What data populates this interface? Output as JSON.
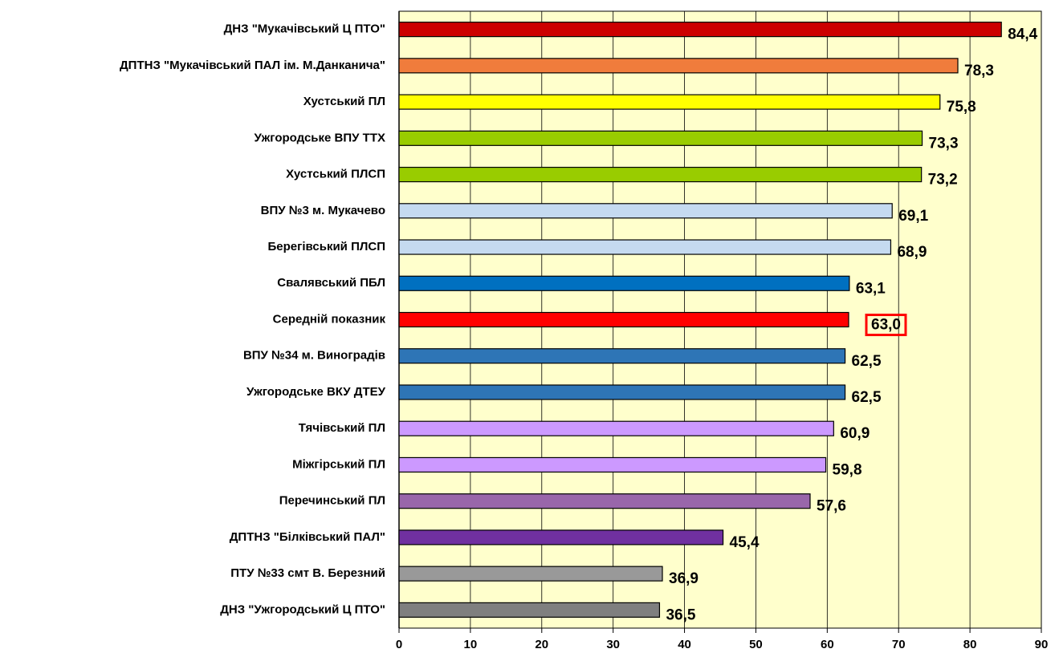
{
  "chart_data": {
    "type": "bar",
    "orientation": "horizontal",
    "categories": [
      "ДНЗ \"Мукачівський Ц ПТО\"",
      "ДПТНЗ \"Мукачівський ПАЛ ім. М.Данканича\"",
      "Хустський ПЛ",
      "Ужгородське ВПУ ТТХ",
      "Хустський ПЛСП",
      "ВПУ №3 м. Мукачево",
      "Берегівський ПЛСП",
      "Свалявський ПБЛ",
      "Середній показник",
      "ВПУ №34 м. Виноградів",
      "Ужгородське ВКУ ДТЕУ",
      "Тячівський ПЛ",
      "Міжгірський ПЛ",
      "Перечинський ПЛ",
      "ДПТНЗ \"Білківський ПАЛ\"",
      "ПТУ №33 смт В. Березний",
      "ДНЗ \"Ужгородський Ц ПТО\""
    ],
    "values": [
      84.4,
      78.3,
      75.8,
      73.3,
      73.2,
      69.1,
      68.9,
      63.1,
      63.0,
      62.5,
      62.5,
      60.9,
      59.8,
      57.6,
      45.4,
      36.9,
      36.5
    ],
    "value_labels": [
      "84,4",
      "78,3",
      "75,8",
      "73,3",
      "73,2",
      "69,1",
      "68,9",
      "63,1",
      "63,0",
      "62,5",
      "62,5",
      "60,9",
      "59,8",
      "57,6",
      "45,4",
      "36,9",
      "36,5"
    ],
    "colors": [
      "#cc0000",
      "#f07c3c",
      "#ffff00",
      "#99cc00",
      "#99cc00",
      "#c5daf0",
      "#c5daf0",
      "#0070c0",
      "#ff0000",
      "#2e75b6",
      "#2e75b6",
      "#cc99ff",
      "#cc99ff",
      "#9966aa",
      "#7030a0",
      "#999999",
      "#7f7f7f"
    ],
    "highlight": "Середній показник",
    "highlight_color": "#ff0000",
    "xlim": [
      0,
      90
    ],
    "xticks": [
      0,
      10,
      20,
      30,
      40,
      50,
      60,
      70,
      80,
      90
    ],
    "grid": true,
    "plot_background": "#ffffcc"
  }
}
